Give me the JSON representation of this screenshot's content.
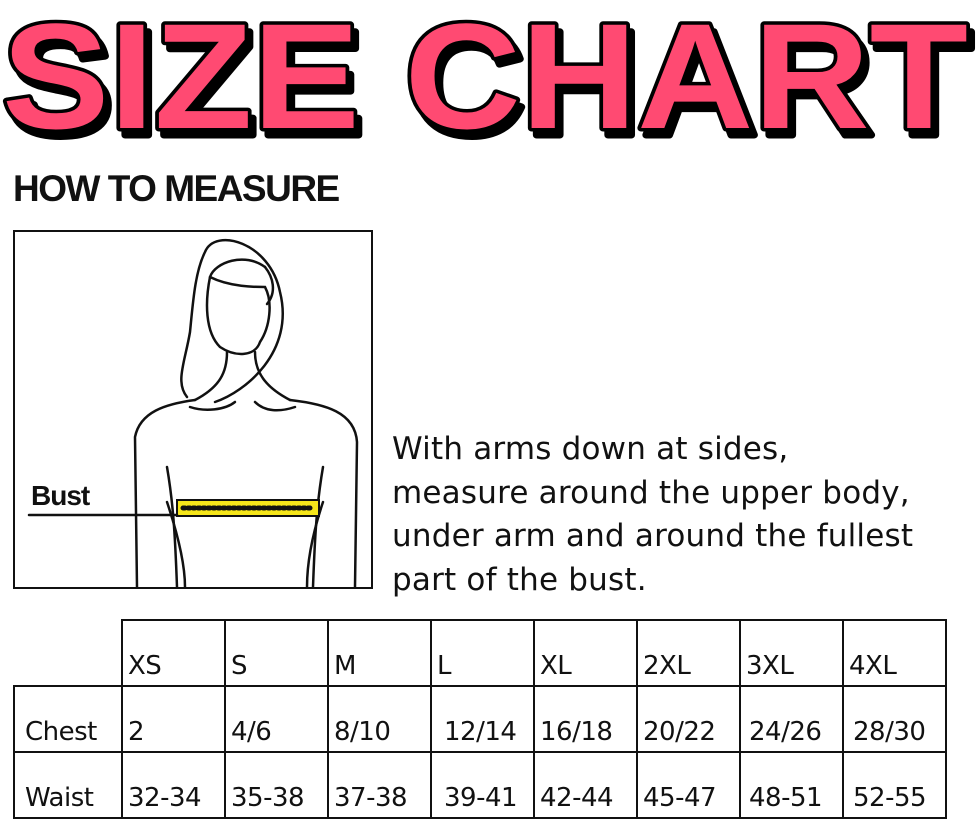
{
  "title": "SIZE CHART",
  "title_color": "#ff4a72",
  "subtitle": "HOW TO MEASURE",
  "figure": {
    "label": "Bust",
    "tape_color": "#f5e61a"
  },
  "instructions": [
    "With arms down at sides,",
    "measure around the upper body,",
    "under arm and around the fullest",
    "part of the bust."
  ],
  "table": {
    "sizes": [
      "XS",
      "S",
      "M",
      "L",
      "XL",
      "2XL",
      "3XL",
      "4XL"
    ],
    "rows": [
      {
        "label": "Chest",
        "values": [
          "2",
          "4/6",
          "8/10",
          "12/14",
          "16/18",
          "20/22",
          "24/26",
          "28/30"
        ]
      },
      {
        "label": "Waist",
        "values": [
          "32-34",
          "35-38",
          "37-38",
          "39-41",
          "42-44",
          "45-47",
          "48-51",
          "52-55"
        ]
      }
    ]
  }
}
